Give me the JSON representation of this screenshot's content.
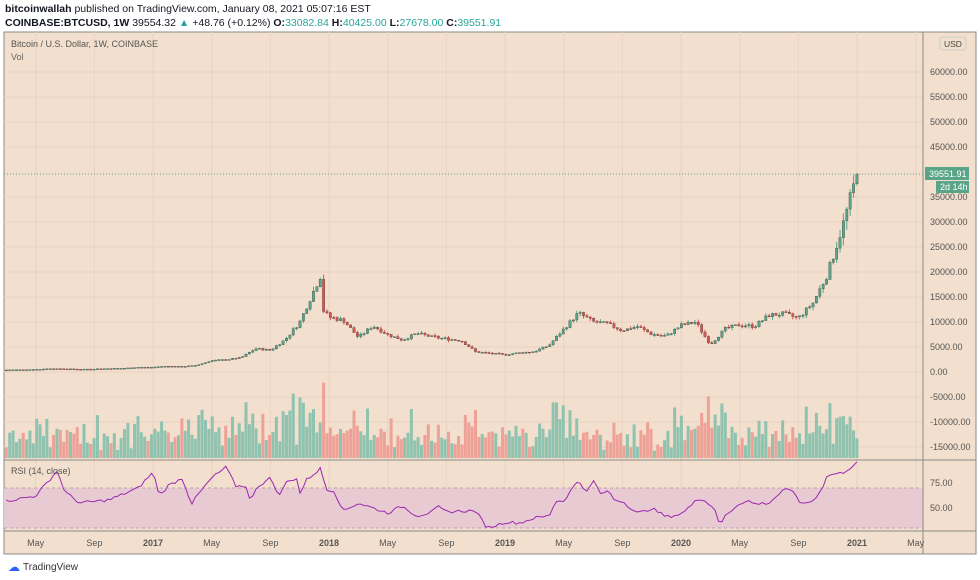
{
  "header": {
    "author": "bitcoinwallah",
    "published": "published on TradingView.com, January 08, 2021 05:07:16 EST",
    "symbol": "COINBASE:BTCUSD, 1W",
    "last": "39554.32",
    "change": "+48.76 (+0.12%)",
    "o_label": "O:",
    "o": "33082.84",
    "h_label": "H:",
    "h": "40425.00",
    "l_label": "L:",
    "l": "27678.00",
    "c_label": "C:",
    "c": "39551.91"
  },
  "legend": {
    "title": "Bitcoin / U.S. Dollar, 1W, COINBASE",
    "vol": "Vol",
    "rsi": "RSI (14, close)"
  },
  "currency": "USD",
  "last_price_tag": "39551.91",
  "countdown_tag": "2d 14h",
  "brand": "TradingView",
  "colors": {
    "up": "#5aa589",
    "down": "#d9574f",
    "vol_up": "#8fc3b0",
    "vol_down": "#eea197",
    "bg": "#f2dfcd",
    "rsi": "#9c27b0",
    "rsi_band": "#e6c7d3"
  },
  "chart_data": {
    "type": "candlestick",
    "price_axis_labels": [
      "60000.00",
      "55000.00",
      "50000.00",
      "45000.00",
      "35000.00",
      "30000.00",
      "25000.00",
      "20000.00",
      "15000.00",
      "10000.00",
      "5000.00",
      "0.00",
      "-5000.00",
      "-10000.00",
      "-15000.00"
    ],
    "rsi_axis_labels": [
      "75.00",
      "50.00"
    ],
    "rsi_band": [
      30,
      70
    ],
    "time_axis_labels": [
      "May",
      "Sep",
      "2017",
      "May",
      "Sep",
      "2018",
      "May",
      "Sep",
      "2019",
      "May",
      "Sep",
      "2020",
      "May",
      "Sep",
      "2021",
      "May"
    ],
    "closes": [
      [
        "2016-03",
        416
      ],
      [
        "2016-04",
        448
      ],
      [
        "2016-05",
        531
      ],
      [
        "2016-06",
        673
      ],
      [
        "2016-07",
        624
      ],
      [
        "2016-08",
        573
      ],
      [
        "2016-09",
        609
      ],
      [
        "2016-10",
        700
      ],
      [
        "2016-11",
        742
      ],
      [
        "2016-12",
        963
      ],
      [
        "2017-01",
        970
      ],
      [
        "2017-02",
        1190
      ],
      [
        "2017-03",
        1080
      ],
      [
        "2017-04",
        1350
      ],
      [
        "2017-05",
        2300
      ],
      [
        "2017-06",
        2480
      ],
      [
        "2017-07",
        2875
      ],
      [
        "2017-08",
        4700
      ],
      [
        "2017-09",
        4340
      ],
      [
        "2017-10",
        6450
      ],
      [
        "2017-11",
        9950
      ],
      [
        "2017-12-15",
        19500
      ],
      [
        "2017-12",
        14500
      ],
      [
        "2018-01",
        11000
      ],
      [
        "2018-02",
        10300
      ],
      [
        "2018-03",
        6930
      ],
      [
        "2018-04",
        9240
      ],
      [
        "2018-05",
        7500
      ],
      [
        "2018-06",
        6400
      ],
      [
        "2018-07",
        7730
      ],
      [
        "2018-08",
        7030
      ],
      [
        "2018-09",
        6630
      ],
      [
        "2018-10",
        6320
      ],
      [
        "2018-11",
        4020
      ],
      [
        "2018-12",
        3740
      ],
      [
        "2019-01",
        3460
      ],
      [
        "2019-02",
        3850
      ],
      [
        "2019-03",
        4100
      ],
      [
        "2019-04",
        5320
      ],
      [
        "2019-05",
        8570
      ],
      [
        "2019-06",
        11800
      ],
      [
        "2019-07",
        10080
      ],
      [
        "2019-08",
        9600
      ],
      [
        "2019-09",
        8300
      ],
      [
        "2019-10",
        9150
      ],
      [
        "2019-11",
        7550
      ],
      [
        "2019-12",
        7190
      ],
      [
        "2020-01",
        9350
      ],
      [
        "2020-02",
        10000
      ],
      [
        "2020-03",
        5500
      ],
      [
        "2020-04",
        8620
      ],
      [
        "2020-05",
        9450
      ],
      [
        "2020-06",
        9140
      ],
      [
        "2020-07",
        11350
      ],
      [
        "2020-08",
        11650
      ],
      [
        "2020-09",
        10780
      ],
      [
        "2020-10",
        13800
      ],
      [
        "2020-11",
        19700
      ],
      [
        "2020-12",
        28990
      ],
      [
        "2021-01",
        39552
      ]
    ],
    "rsi": [
      [
        "2016-03",
        57
      ],
      [
        "2016-05",
        62
      ],
      [
        "2016-06-15",
        87
      ],
      [
        "2016-07",
        66
      ],
      [
        "2016-08",
        55
      ],
      [
        "2016-10",
        58
      ],
      [
        "2016-12",
        70
      ],
      [
        "2017-01",
        86
      ],
      [
        "2017-01-15",
        62
      ],
      [
        "2017-02",
        72
      ],
      [
        "2017-03",
        80
      ],
      [
        "2017-03-20",
        54
      ],
      [
        "2017-04",
        62
      ],
      [
        "2017-05",
        80
      ],
      [
        "2017-06",
        91
      ],
      [
        "2017-06-20",
        72
      ],
      [
        "2017-07-15",
        72
      ],
      [
        "2017-07-20",
        53
      ],
      [
        "2017-08",
        70
      ],
      [
        "2017-09",
        80
      ],
      [
        "2017-09-20",
        62
      ],
      [
        "2017-10",
        75
      ],
      [
        "2017-10-25",
        80
      ],
      [
        "2017-11-01",
        64
      ],
      [
        "2017-11-15",
        78
      ],
      [
        "2017-12-15",
        90
      ],
      [
        "2017-12-25",
        68
      ],
      [
        "2018-01-10",
        68
      ],
      [
        "2018-02",
        47
      ],
      [
        "2018-03",
        55
      ],
      [
        "2018-04",
        50
      ],
      [
        "2018-05",
        45
      ],
      [
        "2018-06",
        52
      ],
      [
        "2018-07",
        42
      ],
      [
        "2018-08",
        46
      ],
      [
        "2018-08-15",
        51
      ],
      [
        "2018-09",
        46
      ],
      [
        "2018-10",
        47
      ],
      [
        "2018-11",
        47
      ],
      [
        "2018-11-25",
        30
      ],
      [
        "2018-12-15",
        33
      ],
      [
        "2019-01",
        36
      ],
      [
        "2019-02",
        35
      ],
      [
        "2019-03",
        40
      ],
      [
        "2019-04",
        42
      ],
      [
        "2019-04-15",
        57
      ],
      [
        "2019-05",
        57
      ],
      [
        "2019-06",
        78
      ],
      [
        "2019-06-20",
        65
      ],
      [
        "2019-07",
        78
      ],
      [
        "2019-07-20",
        62
      ],
      [
        "2019-08",
        68
      ],
      [
        "2019-08-15",
        58
      ],
      [
        "2019-09",
        57
      ],
      [
        "2019-10",
        45
      ],
      [
        "2019-10-20",
        47
      ],
      [
        "2019-11",
        50
      ],
      [
        "2019-12",
        41
      ],
      [
        "2020-01",
        44
      ],
      [
        "2020-01-20",
        51
      ],
      [
        "2020-02",
        60
      ],
      [
        "2020-02-20",
        57
      ],
      [
        "2020-03-10",
        50
      ],
      [
        "2020-03-20",
        32
      ],
      [
        "2020-04",
        42
      ],
      [
        "2020-05",
        55
      ],
      [
        "2020-05-20",
        57
      ],
      [
        "2020-06",
        54
      ],
      [
        "2020-07",
        55
      ],
      [
        "2020-08",
        68
      ],
      [
        "2020-08-25",
        67
      ],
      [
        "2020-09",
        54
      ],
      [
        "2020-10",
        57
      ],
      [
        "2020-10-20",
        70
      ],
      [
        "2020-11",
        83
      ],
      [
        "2020-12",
        85
      ],
      [
        "2021-01",
        95
      ]
    ]
  }
}
